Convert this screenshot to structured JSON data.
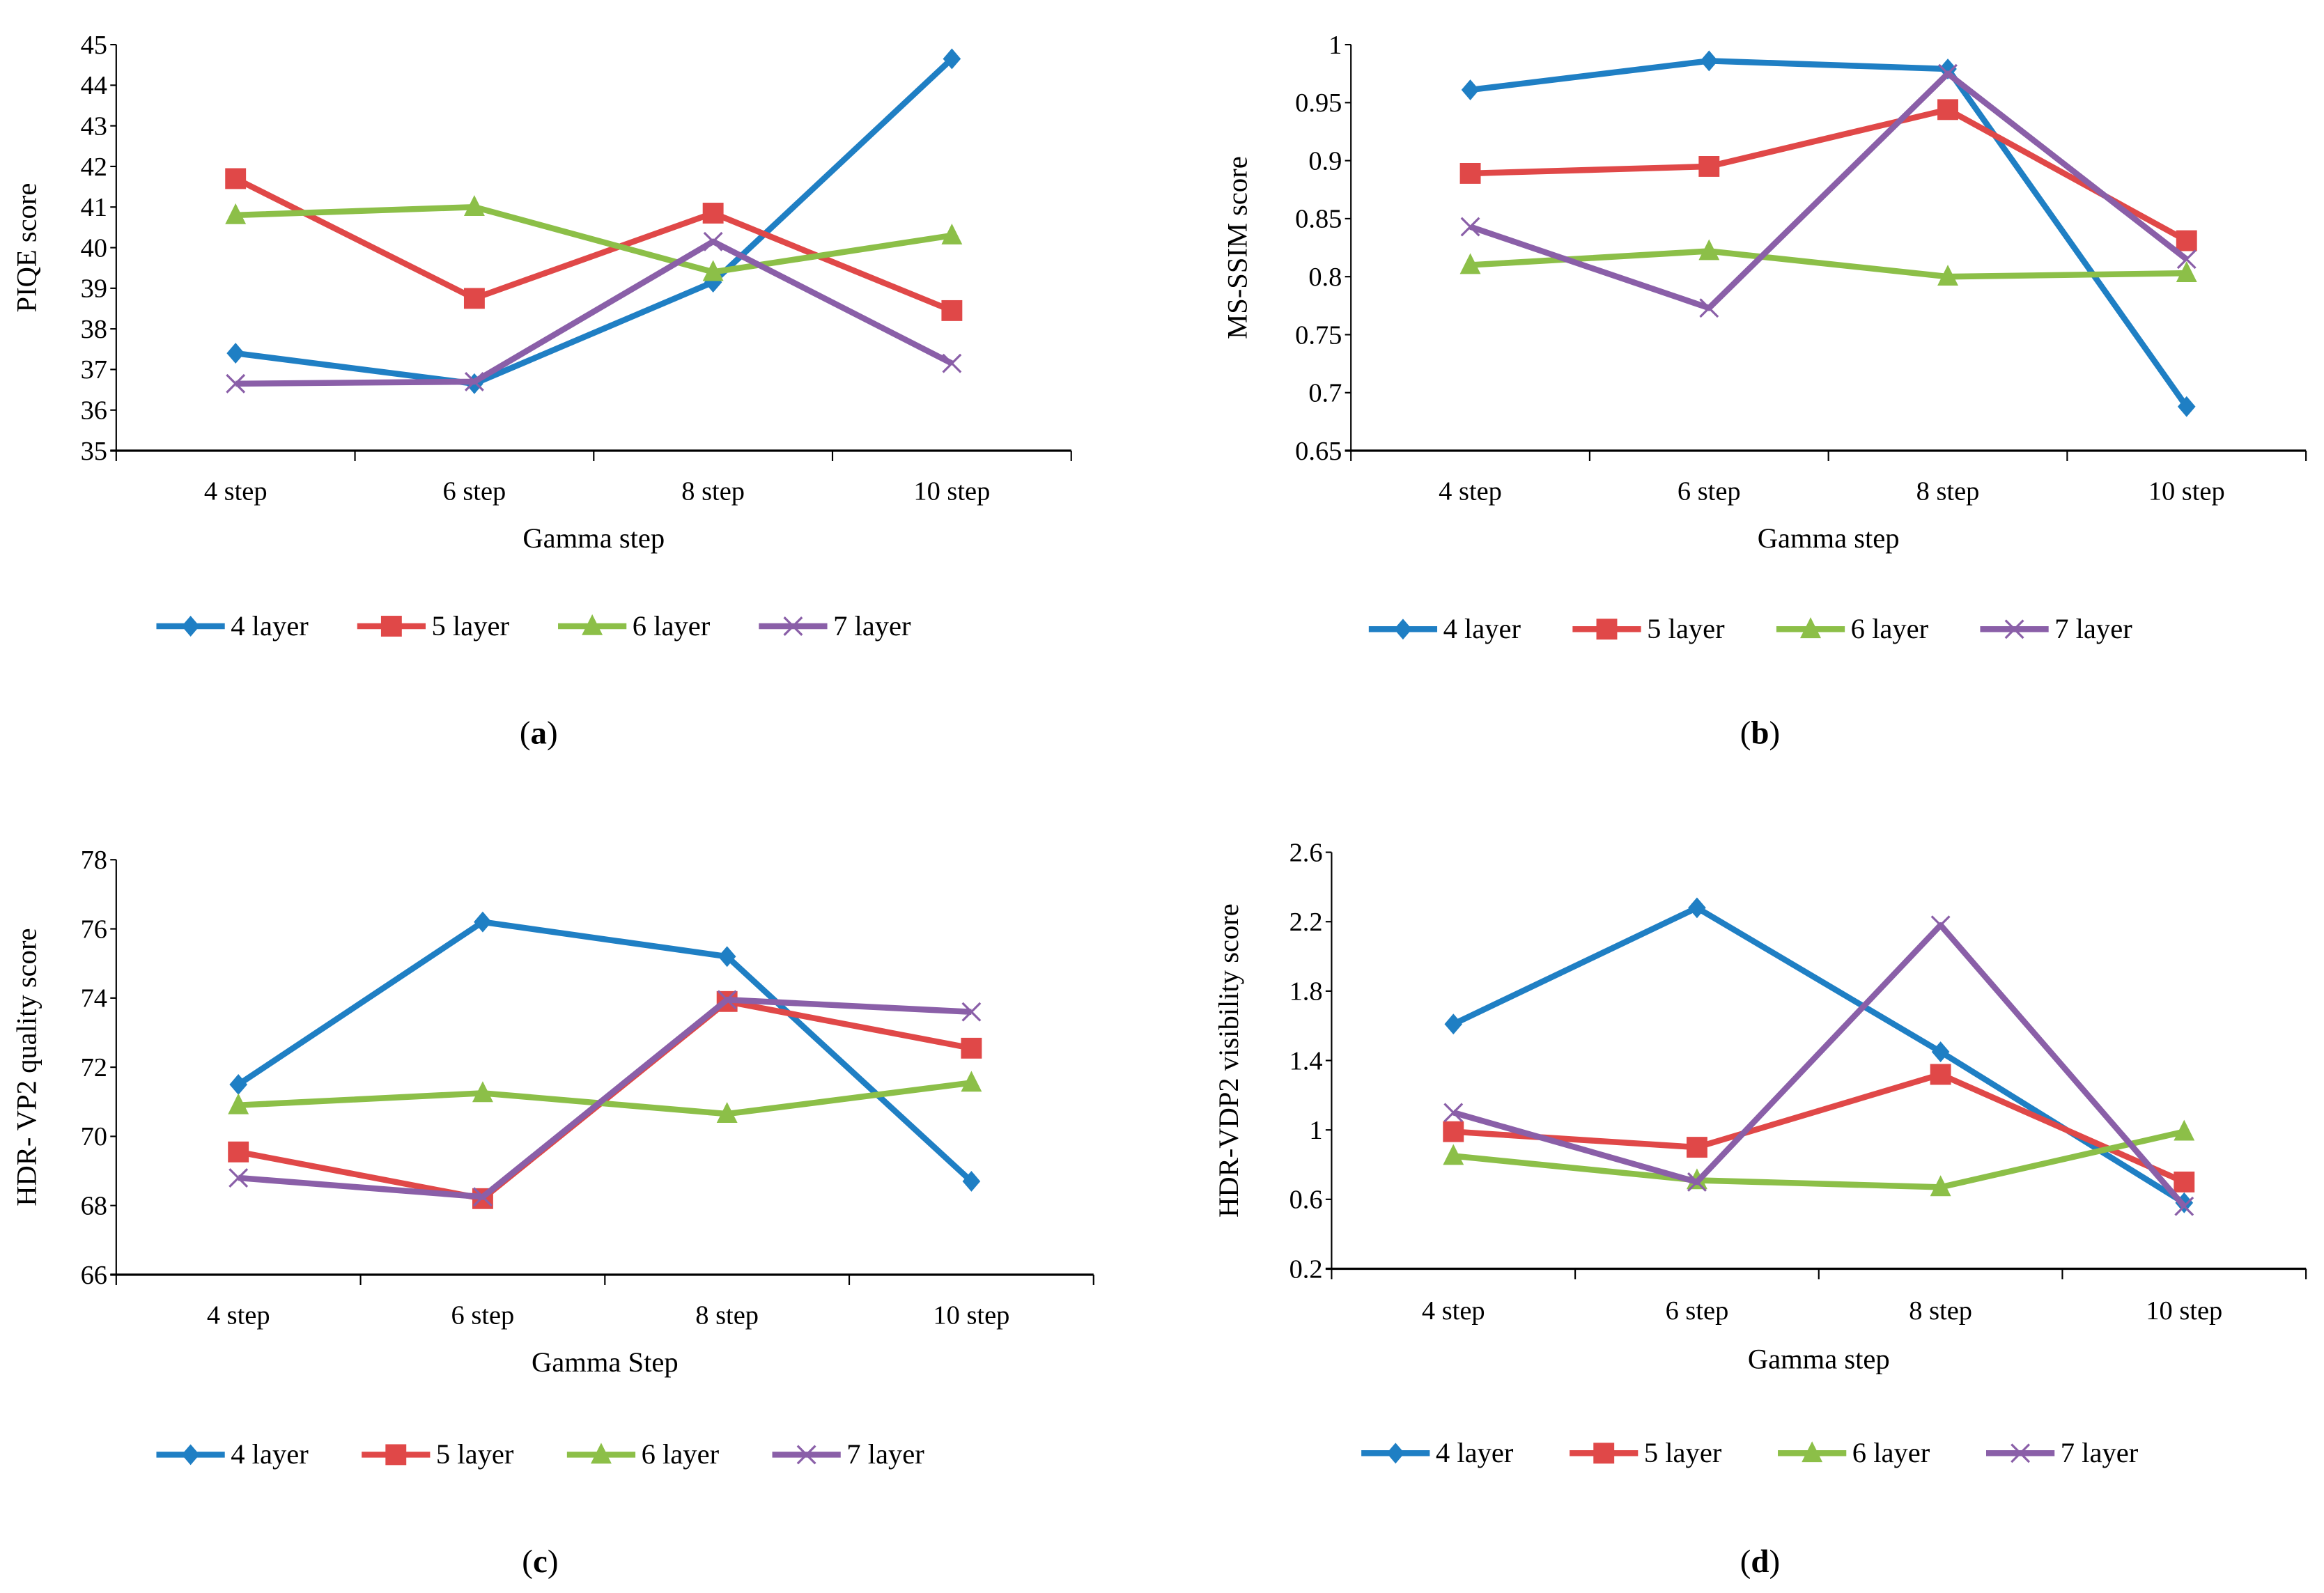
{
  "colors": {
    "4 layer": "#1f7fc4",
    "5 layer": "#e04848",
    "6 layer": "#8cbf48",
    "7 layer": "#8a5fa8"
  },
  "markers": {
    "4 layer": "diamond",
    "5 layer": "square",
    "6 layer": "triangle",
    "7 layer": "x"
  },
  "chart_data": [
    {
      "type": "line",
      "panel_label": "a",
      "caption_letter": "a",
      "categories": [
        "4 step",
        "6 step",
        "8 step",
        "10 step"
      ],
      "xlabel": "Gamma step",
      "ylabel": "PIQE score",
      "ylim": [
        35,
        45
      ],
      "yticks": [
        "35",
        "36",
        "37",
        "38",
        "39",
        "40",
        "41",
        "42",
        "43",
        "44",
        "45"
      ],
      "legend": "bottom",
      "series": [
        {
          "name": "4 layer",
          "values": [
            37.4,
            36.65,
            39.15,
            44.65
          ]
        },
        {
          "name": "5 layer",
          "values": [
            41.7,
            38.75,
            40.85,
            38.45
          ]
        },
        {
          "name": "6 layer",
          "values": [
            40.8,
            41.0,
            39.4,
            40.3
          ]
        },
        {
          "name": "7 layer",
          "values": [
            36.65,
            36.7,
            40.15,
            37.15
          ]
        }
      ]
    },
    {
      "type": "line",
      "panel_label": "b",
      "caption_letter": "b",
      "categories": [
        "4 step",
        "6 step",
        "8 step",
        "10 step"
      ],
      "xlabel": "Gamma step",
      "ylabel": "MS-SSIM score",
      "ylim": [
        0.65,
        1
      ],
      "yticks": [
        "0.65",
        "0.7",
        "0.75",
        "0.8",
        "0.85",
        "0.9",
        "0.95",
        "1"
      ],
      "legend": "bottom",
      "series": [
        {
          "name": "4 layer",
          "values": [
            0.961,
            0.986,
            0.979,
            0.688
          ]
        },
        {
          "name": "5 layer",
          "values": [
            0.889,
            0.895,
            0.944,
            0.831
          ]
        },
        {
          "name": "6 layer",
          "values": [
            0.81,
            0.822,
            0.8,
            0.803
          ]
        },
        {
          "name": "7 layer",
          "values": [
            0.843,
            0.773,
            0.975,
            0.815
          ]
        }
      ]
    },
    {
      "type": "line",
      "panel_label": "c",
      "caption_letter": "c",
      "categories": [
        "4 step",
        "6 step",
        "8 step",
        "10 step"
      ],
      "xlabel": "Gamma Step",
      "ylabel": "HDR- VP2 quality score",
      "ylim": [
        66,
        78
      ],
      "yticks": [
        "66",
        "68",
        "70",
        "72",
        "74",
        "76",
        "78"
      ],
      "legend": "bottom",
      "series": [
        {
          "name": "4 layer",
          "values": [
            71.5,
            76.2,
            75.2,
            68.7
          ]
        },
        {
          "name": "5 layer",
          "values": [
            69.55,
            68.2,
            73.9,
            72.55
          ]
        },
        {
          "name": "6 layer",
          "values": [
            70.9,
            71.25,
            70.65,
            71.55
          ]
        },
        {
          "name": "7 layer",
          "values": [
            68.8,
            68.25,
            73.95,
            73.6
          ]
        }
      ]
    },
    {
      "type": "line",
      "panel_label": "d",
      "caption_letter": "d",
      "categories": [
        "4 step",
        "6 step",
        "8 step",
        "10 step"
      ],
      "xlabel": "Gamma step",
      "ylabel": "HDR-VDP2 visibility score",
      "ylim": [
        0.2,
        2.6
      ],
      "yticks": [
        "0.2",
        "0.6",
        "1",
        "1.4",
        "1.8",
        "2.2",
        "2.6"
      ],
      "legend": "bottom",
      "series": [
        {
          "name": "4 layer",
          "values": [
            1.61,
            2.28,
            1.45,
            0.58
          ]
        },
        {
          "name": "5 layer",
          "values": [
            0.99,
            0.9,
            1.32,
            0.7
          ]
        },
        {
          "name": "6 layer",
          "values": [
            0.85,
            0.71,
            0.67,
            0.99
          ]
        },
        {
          "name": "7 layer",
          "values": [
            1.1,
            0.7,
            2.18,
            0.56
          ]
        }
      ]
    }
  ]
}
